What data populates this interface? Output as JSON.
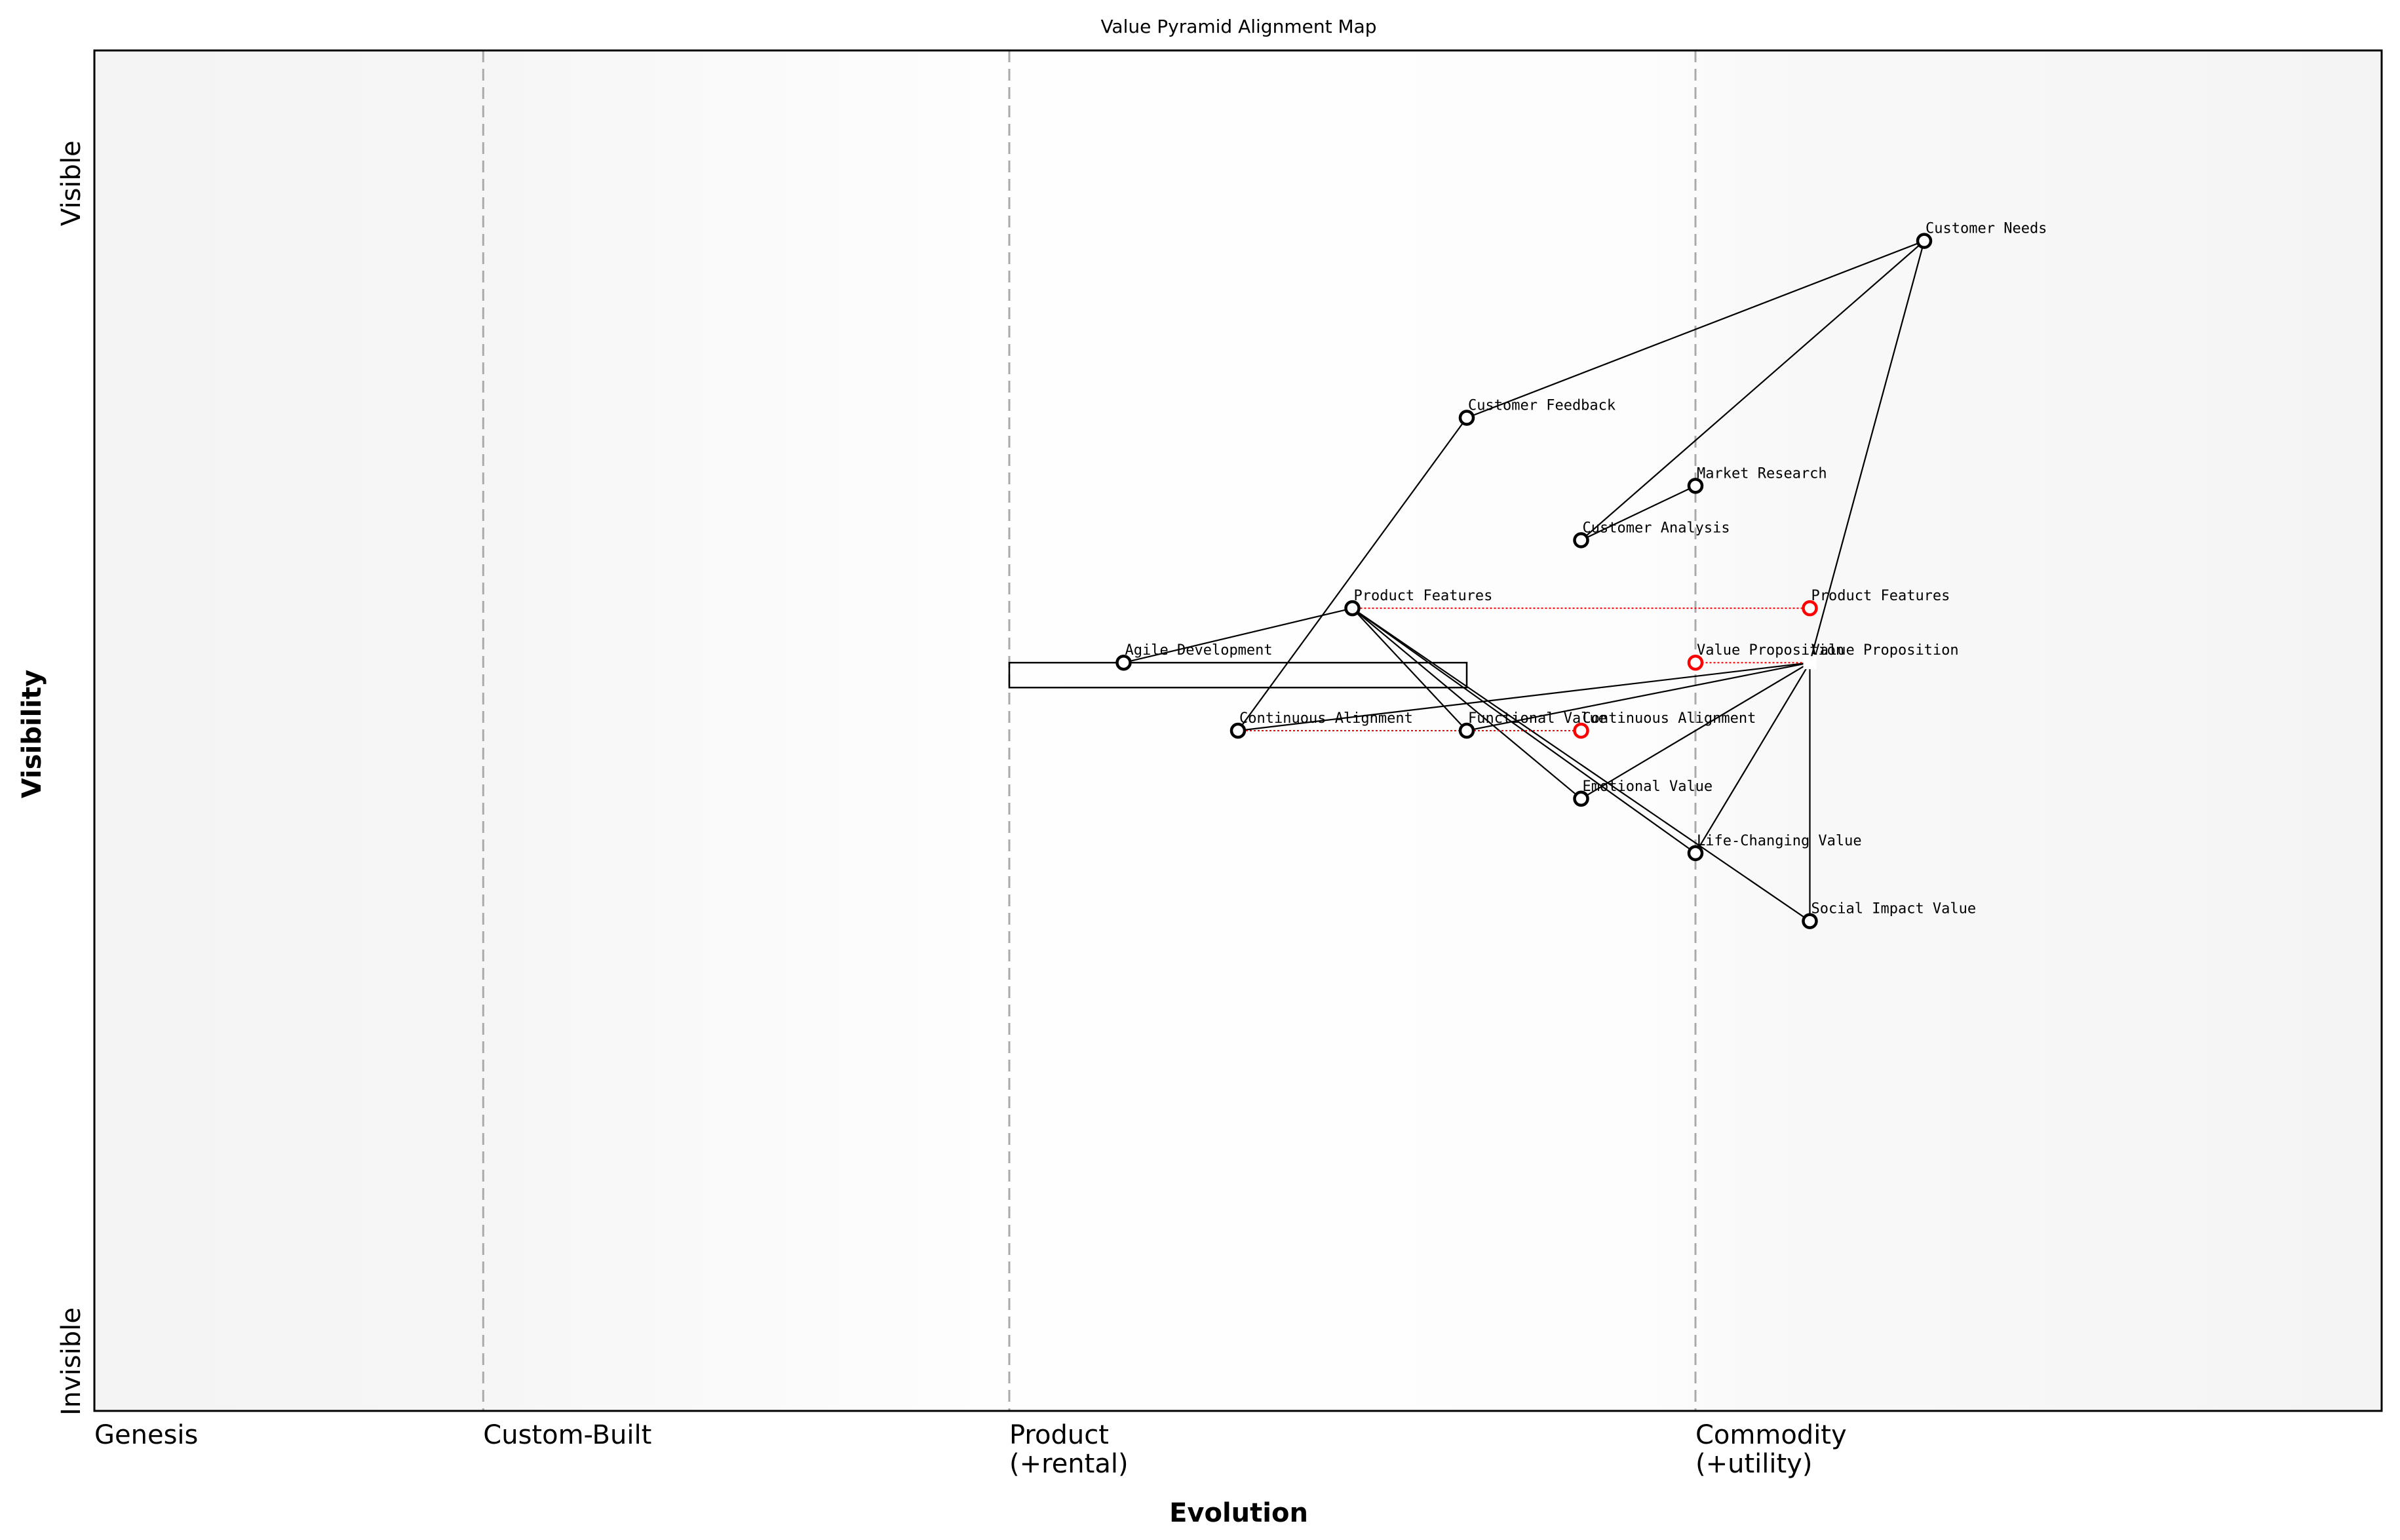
{
  "title": "Value Pyramid Alignment Map",
  "x_axis": {
    "label": "Evolution",
    "stages": [
      {
        "label": [
          "Genesis"
        ],
        "at": 0
      },
      {
        "label": [
          "Custom-Built"
        ],
        "at": 0.17
      },
      {
        "label": [
          "Product",
          "(+rental)"
        ],
        "at": 0.4
      },
      {
        "label": [
          "Commodity",
          "(+utility)"
        ],
        "at": 0.7
      }
    ]
  },
  "y_axis": {
    "label": "Visibility",
    "top": "Visible",
    "bottom": "Invisible"
  },
  "colors": {
    "node": "#000000",
    "evolve": "#ff0000",
    "divider": "#aaaaaa"
  },
  "components": [
    {
      "id": "needs",
      "name": "Customer Needs",
      "evolution": 0.8,
      "visibility": 0.86
    },
    {
      "id": "feedback",
      "name": "Customer Feedback",
      "evolution": 0.6,
      "visibility": 0.73
    },
    {
      "id": "research",
      "name": "Market Research",
      "evolution": 0.7,
      "visibility": 0.68
    },
    {
      "id": "analysis",
      "name": "Customer Analysis",
      "evolution": 0.65,
      "visibility": 0.64
    },
    {
      "id": "features",
      "name": "Product Features",
      "evolution": 0.55,
      "visibility": 0.59
    },
    {
      "id": "agile",
      "name": "Agile Development",
      "evolution": 0.45,
      "visibility": 0.55
    },
    {
      "id": "valueprop",
      "name": "Value Proposition",
      "evolution": 0.75,
      "visibility": 0.55,
      "hidden_marker": true
    },
    {
      "id": "alignment",
      "name": "Continuous Alignment",
      "evolution": 0.5,
      "visibility": 0.5
    },
    {
      "id": "functional",
      "name": "Functional Value",
      "evolution": 0.6,
      "visibility": 0.5
    },
    {
      "id": "emotional",
      "name": "Emotional Value",
      "evolution": 0.65,
      "visibility": 0.45
    },
    {
      "id": "lifechanging",
      "name": "Life-Changing Value",
      "evolution": 0.7,
      "visibility": 0.41
    },
    {
      "id": "social",
      "name": "Social Impact Value",
      "evolution": 0.75,
      "visibility": 0.36
    }
  ],
  "evolutions": [
    {
      "from": "features",
      "name": "Product Features",
      "evolution": 0.75
    },
    {
      "from": "valueprop",
      "name": "Value Proposition",
      "evolution": 0.7
    },
    {
      "from": "alignment",
      "name": "Continuous Alignment",
      "evolution": 0.65
    }
  ],
  "links": [
    [
      "needs",
      "feedback"
    ],
    [
      "needs",
      "analysis"
    ],
    [
      "needs",
      "valueprop"
    ],
    [
      "feedback",
      "alignment"
    ],
    [
      "analysis",
      "research"
    ],
    [
      "features",
      "agile"
    ],
    [
      "features",
      "functional"
    ],
    [
      "features",
      "emotional"
    ],
    [
      "features",
      "lifechanging"
    ],
    [
      "features",
      "social"
    ],
    [
      "valueprop",
      "alignment"
    ],
    [
      "valueprop",
      "functional"
    ],
    [
      "valueprop",
      "emotional"
    ],
    [
      "valueprop",
      "lifechanging"
    ],
    [
      "valueprop",
      "social"
    ]
  ],
  "pipeline": {
    "component": "agile",
    "evolution_start": 0.4,
    "evolution_end": 0.6
  }
}
